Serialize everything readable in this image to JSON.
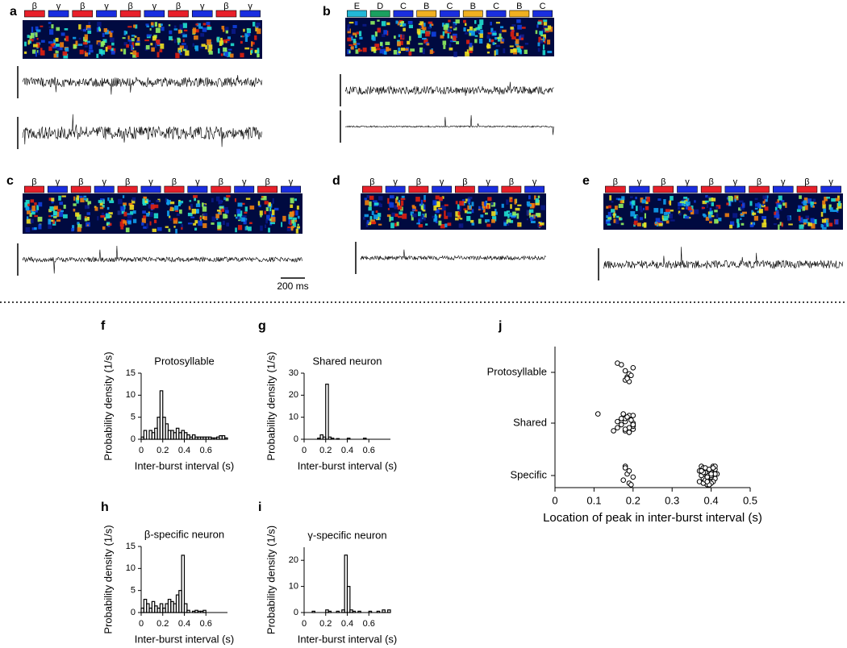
{
  "recordings": {
    "syllable_colors": {
      "β": "#e8202a",
      "γ": "#1a2ee0",
      "E": "#22b8d8",
      "D": "#1aa060",
      "C": "#1a2ee0",
      "B": "#f0b020"
    },
    "panels": [
      {
        "label": "a",
        "syllables": [
          "β",
          "γ",
          "β",
          "γ",
          "β",
          "γ",
          "β",
          "γ",
          "β",
          "γ"
        ]
      },
      {
        "label": "b",
        "syllables": [
          "E",
          "D",
          "C",
          "B",
          "C",
          "B",
          "C",
          "B",
          "C"
        ]
      },
      {
        "label": "c",
        "syllables": [
          "β",
          "γ",
          "β",
          "γ",
          "β",
          "γ",
          "β",
          "γ",
          "β",
          "γ",
          "β",
          "γ"
        ]
      },
      {
        "label": "d",
        "syllables": [
          "β",
          "γ",
          "β",
          "γ",
          "β",
          "γ",
          "β",
          "γ"
        ]
      },
      {
        "label": "e",
        "syllables": [
          "β",
          "γ",
          "β",
          "γ",
          "β",
          "γ",
          "β",
          "γ",
          "β",
          "γ"
        ]
      }
    ],
    "scale_bar": "200 ms"
  },
  "chart_data": [
    {
      "type": "histogram",
      "panel": "f",
      "title": "Protosyllable",
      "xlabel": "Inter-burst interval (s)",
      "ylabel": "Probability density (1/s)",
      "color": "#000000",
      "bins": [
        0,
        0.025,
        0.05,
        0.075,
        0.1,
        0.125,
        0.15,
        0.175,
        0.2,
        0.225,
        0.25,
        0.275,
        0.3,
        0.325,
        0.35,
        0.375,
        0.4,
        0.425,
        0.45,
        0.475,
        0.5,
        0.525,
        0.55,
        0.575,
        0.6,
        0.625,
        0.65,
        0.675,
        0.7,
        0.725,
        0.75,
        0.775,
        0.8
      ],
      "counts": [
        0.5,
        2,
        0,
        2,
        1.5,
        2.5,
        5,
        11,
        5,
        3.5,
        2,
        2,
        1.5,
        2.5,
        1.5,
        2,
        1.5,
        1,
        0.5,
        1,
        0.5,
        0.5,
        0.5,
        0.5,
        0.5,
        0.5,
        0.3,
        0.3,
        0.5,
        0.8,
        0.8,
        0.3
      ],
      "xlim": [
        0,
        0.8
      ],
      "ylim": [
        0,
        15
      ],
      "xticks": [
        0,
        0.2,
        0.4,
        0.6
      ],
      "yticks": [
        0,
        5,
        10,
        15
      ]
    },
    {
      "type": "histogram",
      "panel": "g",
      "title": "Shared neuron",
      "xlabel": "Inter-burst interval (s)",
      "ylabel": "Probability density (1/s)",
      "color": "#000000",
      "bins": [
        0,
        0.025,
        0.05,
        0.075,
        0.1,
        0.125,
        0.15,
        0.175,
        0.2,
        0.225,
        0.25,
        0.275,
        0.3,
        0.325,
        0.35,
        0.375,
        0.4,
        0.425,
        0.45,
        0.475,
        0.5,
        0.525,
        0.55,
        0.575,
        0.6,
        0.625,
        0.65,
        0.675,
        0.7,
        0.725,
        0.75,
        0.775,
        0.8
      ],
      "counts": [
        0,
        0,
        0,
        0,
        0,
        0.5,
        2,
        1,
        25,
        1,
        0.5,
        0,
        0.3,
        0,
        0,
        0,
        0.5,
        0,
        0,
        0,
        0,
        0,
        0.5,
        0,
        0,
        0,
        0,
        0,
        0,
        0,
        0,
        0
      ],
      "xlim": [
        0,
        0.8
      ],
      "ylim": [
        0,
        30
      ],
      "xticks": [
        0,
        0.2,
        0.4,
        0.6
      ],
      "yticks": [
        0,
        10,
        20,
        30
      ]
    },
    {
      "type": "histogram",
      "panel": "h",
      "title": "β-specific neuron",
      "xlabel": "Inter-burst interval (s)",
      "ylabel": "Probability density (1/s)",
      "color": "#000000",
      "bins": [
        0,
        0.025,
        0.05,
        0.075,
        0.1,
        0.125,
        0.15,
        0.175,
        0.2,
        0.225,
        0.25,
        0.275,
        0.3,
        0.325,
        0.35,
        0.375,
        0.4,
        0.425,
        0.45,
        0.475,
        0.5,
        0.525,
        0.55,
        0.575,
        0.6,
        0.625,
        0.65,
        0.675,
        0.7,
        0.725,
        0.75,
        0.775,
        0.8
      ],
      "counts": [
        1,
        3,
        2,
        1,
        2.5,
        1.5,
        1,
        2,
        1,
        2,
        3,
        2.5,
        2,
        4,
        5,
        13,
        2,
        0.5,
        0,
        0.3,
        0.5,
        0.3,
        0.3,
        0.5,
        0,
        0,
        0,
        0,
        0,
        0,
        0,
        0
      ],
      "xlim": [
        0,
        0.8
      ],
      "ylim": [
        0,
        15
      ],
      "xticks": [
        0,
        0.2,
        0.4,
        0.6
      ],
      "yticks": [
        0,
        5,
        10,
        15
      ]
    },
    {
      "type": "histogram",
      "panel": "i",
      "title": "γ-specific neuron",
      "xlabel": "Inter-burst interval (s)",
      "ylabel": "Probability density (1/s)",
      "color": "#000000",
      "bins": [
        0,
        0.025,
        0.05,
        0.075,
        0.1,
        0.125,
        0.15,
        0.175,
        0.2,
        0.225,
        0.25,
        0.275,
        0.3,
        0.325,
        0.35,
        0.375,
        0.4,
        0.425,
        0.45,
        0.475,
        0.5,
        0.525,
        0.55,
        0.575,
        0.6,
        0.625,
        0.65,
        0.675,
        0.7,
        0.725,
        0.75,
        0.775,
        0.8
      ],
      "counts": [
        0,
        0,
        0,
        0.5,
        0,
        0,
        0,
        0,
        1,
        0.5,
        0,
        0,
        0.5,
        0,
        1,
        22,
        10,
        1,
        0.5,
        0,
        0.5,
        0,
        0,
        0,
        0.5,
        0,
        0,
        0.5,
        0,
        1,
        0,
        1
      ],
      "xlim": [
        0,
        0.8
      ],
      "ylim": [
        0,
        25
      ],
      "xticks": [
        0,
        0.2,
        0.4,
        0.6
      ],
      "yticks": [
        0,
        10,
        20
      ]
    },
    {
      "type": "strip",
      "panel": "j",
      "xlabel": "Location of peak in inter-burst interval (s)",
      "marker_color": "#000000",
      "groups": [
        {
          "name": "Protosyllable",
          "values": [
            0.16,
            0.18,
            0.185,
            0.19,
            0.18,
            0.2,
            0.17,
            0.19,
            0.185,
            0.195
          ]
        },
        {
          "name": "Shared",
          "values": [
            0.11,
            0.15,
            0.16,
            0.17,
            0.18,
            0.18,
            0.19,
            0.19,
            0.2,
            0.2,
            0.2,
            0.195,
            0.185,
            0.175,
            0.18,
            0.19,
            0.2,
            0.16,
            0.17,
            0.2,
            0.19,
            0.18
          ]
        },
        {
          "name": "Specific",
          "values": [
            0.18,
            0.19,
            0.175,
            0.2,
            0.185,
            0.19,
            0.18,
            0.195,
            0.37,
            0.38,
            0.39,
            0.4,
            0.41,
            0.375,
            0.385,
            0.395,
            0.405,
            0.415,
            0.37,
            0.38,
            0.39,
            0.4,
            0.41,
            0.375,
            0.385,
            0.395,
            0.405,
            0.38,
            0.39,
            0.4,
            0.41,
            0.375,
            0.385,
            0.395,
            0.405,
            0.39,
            0.4,
            0.38,
            0.395,
            0.41,
            0.4,
            0.385,
            0.39,
            0.4,
            0.375,
            0.405,
            0.395,
            0.39
          ]
        }
      ],
      "xlim": [
        0,
        0.5
      ],
      "xticks": [
        0,
        0.1,
        0.2,
        0.3,
        0.4,
        0.5
      ]
    }
  ]
}
